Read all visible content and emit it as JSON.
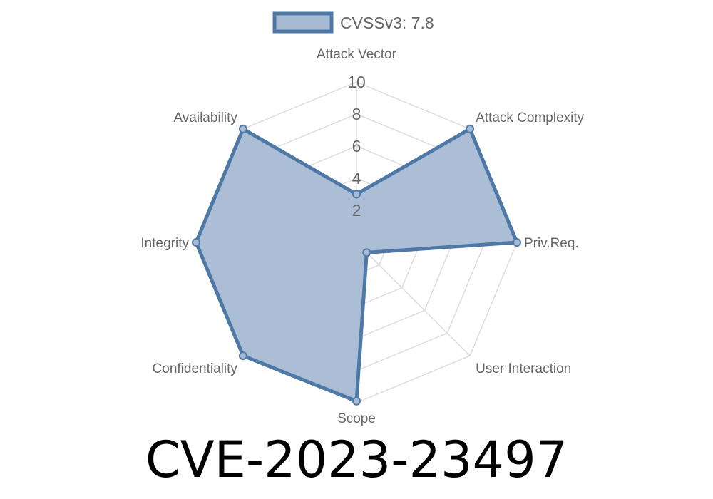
{
  "chart_data": {
    "type": "radar",
    "title": "CVE-2023-23497",
    "axes": [
      "Attack Vector",
      "Attack Complexity",
      "Priv.Req.",
      "User Interaction",
      "Scope",
      "Confidentiality",
      "Integrity",
      "Availability"
    ],
    "ticks": [
      "2",
      "4",
      "6",
      "8",
      "10"
    ],
    "range": [
      0,
      10
    ],
    "grid": true,
    "legend_placement": "top",
    "series": [
      {
        "name": "CVSSv3: 7.8",
        "values": [
          3,
          10,
          10,
          0.9,
          9.9,
          10,
          10,
          10
        ]
      }
    ],
    "colors": {
      "line": "#4e79a7",
      "fill": "#a7bad4",
      "grid": "#dddddd"
    }
  }
}
